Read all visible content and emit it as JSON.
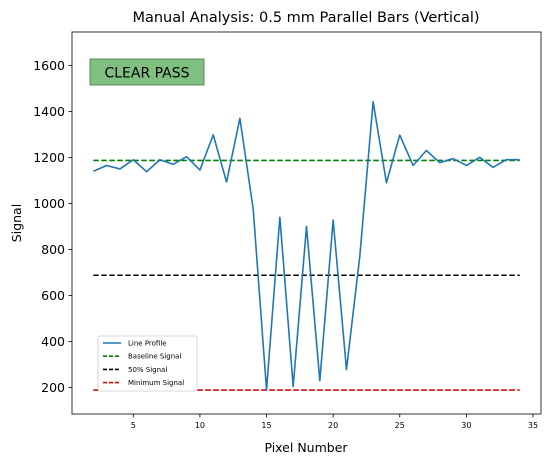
{
  "chart_data": {
    "type": "line",
    "title": "Manual Analysis: 0.5 mm Parallel Bars (Vertical)",
    "xlabel": "Pixel Number",
    "ylabel": "Signal",
    "xlim": [
      0.4,
      35.6
    ],
    "ylim": [
      85,
      1745
    ],
    "x_ticks": [
      5,
      10,
      15,
      20,
      25,
      30,
      35
    ],
    "y_ticks": [
      200,
      400,
      600,
      800,
      1000,
      1200,
      1400,
      1600
    ],
    "grid": false,
    "legend_position": "lower-left",
    "annotation": {
      "text": "CLEAR PASS",
      "color": "#7fbf7f",
      "border_color": "#5a8a5a"
    },
    "series": [
      {
        "name": "Line Profile",
        "color": "#1f77b4",
        "style": "solid",
        "x": [
          2,
          3,
          4,
          5,
          6,
          7,
          8,
          9,
          10,
          11,
          12,
          13,
          14,
          15,
          16,
          17,
          18,
          19,
          20,
          21,
          22,
          23,
          24,
          25,
          26,
          27,
          28,
          29,
          30,
          31,
          32,
          33,
          34
        ],
        "y": [
          1140,
          1165,
          1150,
          1190,
          1138,
          1190,
          1170,
          1203,
          1145,
          1298,
          1093,
          1370,
          975,
          190,
          940,
          205,
          900,
          230,
          928,
          278,
          770,
          1442,
          1090,
          1297,
          1165,
          1230,
          1177,
          1195,
          1165,
          1200,
          1157,
          1190,
          1190
        ]
      },
      {
        "name": "Baseline Signal",
        "color": "#008000",
        "style": "dashed",
        "x": [
          2,
          34
        ],
        "y": [
          1187,
          1187
        ]
      },
      {
        "name": "50% Signal",
        "color": "#000000",
        "style": "dashed",
        "x": [
          2,
          34
        ],
        "y": [
          688,
          688
        ]
      },
      {
        "name": "Minimum Signal",
        "color": "#e00000",
        "style": "dashed",
        "x": [
          2,
          34
        ],
        "y": [
          189,
          189
        ]
      }
    ]
  }
}
